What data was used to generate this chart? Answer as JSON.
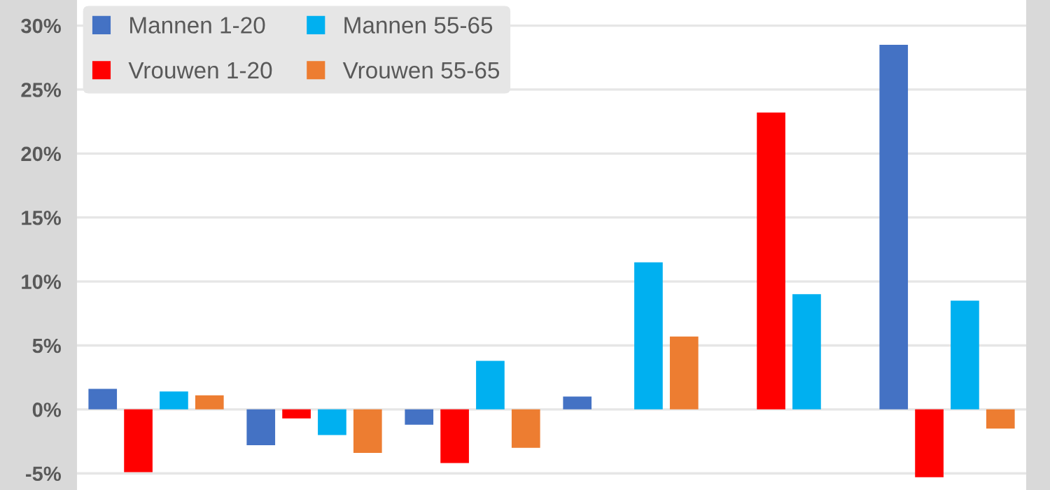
{
  "chart_data": {
    "type": "bar",
    "categories": [
      null,
      null,
      null,
      null,
      null,
      null
    ],
    "series": [
      {
        "name": "Mannen 1-20",
        "color": "#4472c4",
        "values": [
          1.6,
          -2.8,
          -1.2,
          1.0,
          null,
          28.5
        ]
      },
      {
        "name": "Vrouwen 1-20",
        "color": "#ff0000",
        "values": [
          -4.9,
          -0.7,
          -4.2,
          null,
          23.2,
          -5.3
        ]
      },
      {
        "name": "Mannen 55-65",
        "color": "#00b0f0",
        "values": [
          1.4,
          -2.0,
          3.8,
          11.5,
          9.0,
          8.5
        ]
      },
      {
        "name": "Vrouwen 55-65",
        "color": "#ed7d31",
        "values": [
          1.1,
          -3.4,
          -3.0,
          5.7,
          0.0,
          -1.5
        ]
      }
    ],
    "ylim": [
      -6.3,
      32
    ],
    "yticks": [
      {
        "value": -5,
        "label": "-5%"
      },
      {
        "value": 0,
        "label": "0%"
      },
      {
        "value": 5,
        "label": "5%"
      },
      {
        "value": 10,
        "label": "10%"
      },
      {
        "value": 15,
        "label": "15%"
      },
      {
        "value": 20,
        "label": "20%"
      },
      {
        "value": 25,
        "label": "25%"
      },
      {
        "value": 30,
        "label": "30%"
      }
    ],
    "grid": "y",
    "legend": "top left",
    "tick_labels": "y"
  }
}
